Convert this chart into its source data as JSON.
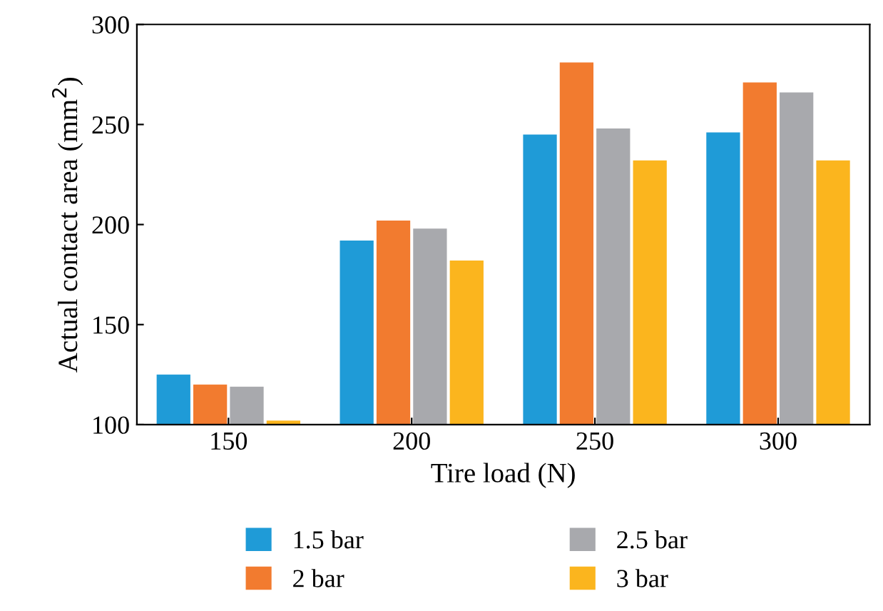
{
  "chart_data": {
    "type": "bar",
    "xlabel": "Tire load (N)",
    "ylabel": "Actual contact area (mm$^{2}$)",
    "categories": [
      "150",
      "200",
      "250",
      "300"
    ],
    "series": [
      {
        "name": "1.5 bar",
        "color": "#1f9bd7",
        "values": [
          125,
          192,
          245,
          246
        ]
      },
      {
        "name": "2 bar",
        "color": "#f27b2f",
        "values": [
          120,
          202,
          281,
          271
        ]
      },
      {
        "name": "2.5 bar",
        "color": "#a8a9ad",
        "values": [
          119,
          198,
          248,
          266
        ]
      },
      {
        "name": "3 bar",
        "color": "#fbb51e",
        "values": [
          102,
          182,
          232,
          232
        ]
      }
    ],
    "ylim": [
      100,
      300
    ],
    "yticks": [
      100,
      150,
      200,
      250,
      300
    ],
    "grid": false,
    "legend": "bottom"
  }
}
